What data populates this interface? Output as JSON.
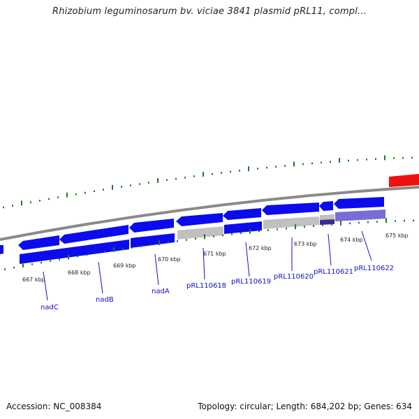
{
  "title": "Rhizobium leguminosarum bv. viciae 3841 plasmid pRL11, compl...",
  "footer": {
    "accession": "Accession: NC_008384",
    "stats": "Topology: circular; Length: 684,202 bp; Genes: 634"
  },
  "colors": {
    "feature_blue": "#0b0bee",
    "cds_lavender": "#7b6bd6",
    "hypothetical_gray": "#bdbdbd",
    "rna_red": "#ee1111",
    "backbone": "#888888",
    "tick_green": "#1e7a1e",
    "label_blue": "#1010c0"
  },
  "kbp_ticks": [
    "667 kbp",
    "668 kbp",
    "669 kbp",
    "670 kbp",
    "671 kbp",
    "672 kbp",
    "673 kbp",
    "674 kbp",
    "675 kbp"
  ],
  "gene_labels": [
    "nadC",
    "nadB",
    "nadA",
    "pRL110618",
    "pRL110619",
    "pRL110620",
    "pRL110621",
    "pRL110622"
  ]
}
